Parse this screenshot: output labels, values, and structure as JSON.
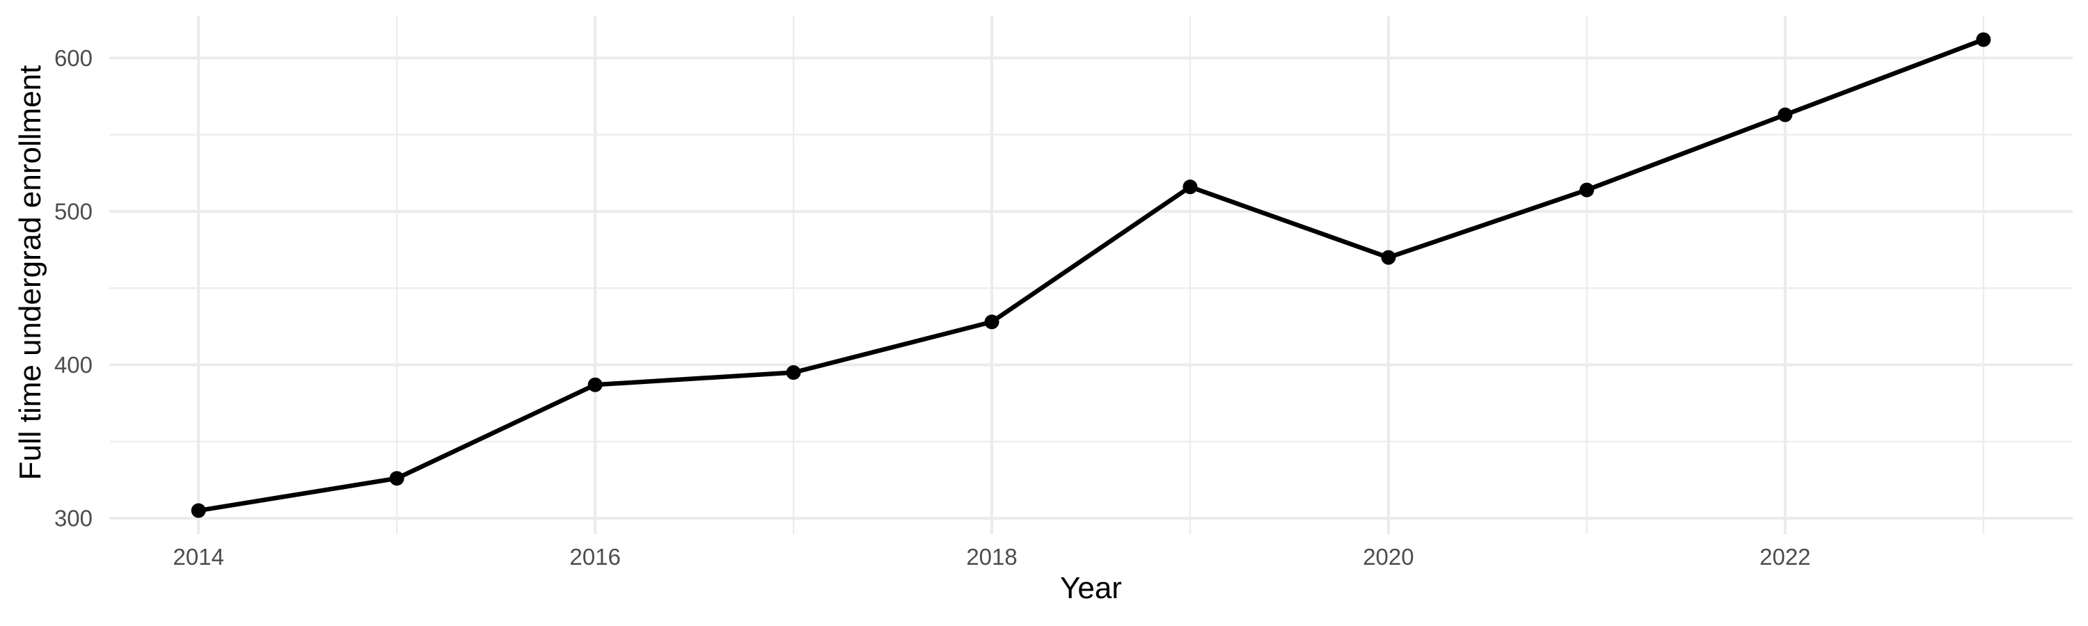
{
  "chart_data": {
    "type": "line",
    "title": "",
    "xlabel": "Year",
    "ylabel": "Full time undergrad enrollment",
    "x": [
      2014,
      2015,
      2016,
      2017,
      2018,
      2019,
      2020,
      2021,
      2022,
      2023
    ],
    "series": [
      {
        "name": "Full time undergrad enrollment",
        "values": [
          305,
          326,
          387,
          395,
          428,
          516,
          470,
          514,
          563,
          612
        ]
      }
    ],
    "x_ticks": [
      2014,
      2016,
      2018,
      2020,
      2022
    ],
    "y_ticks": [
      300,
      400,
      500,
      600
    ],
    "x_minor_gridlines": [
      2015,
      2017,
      2019,
      2021,
      2023
    ],
    "y_minor_gridlines": [
      350,
      450,
      550
    ],
    "x_domain": [
      2013.55,
      2023.45
    ],
    "y_domain": [
      289.6,
      627.4
    ],
    "grid": "on",
    "legend_position": "none",
    "point_marker": "filled-circle",
    "colors": {
      "series": "#000000",
      "grid_major": "#EBEBEB",
      "grid_minor": "#ECECEC",
      "tick_label": "#4D4D4D",
      "axis_title": "#000000",
      "background": "#FFFFFF"
    }
  }
}
